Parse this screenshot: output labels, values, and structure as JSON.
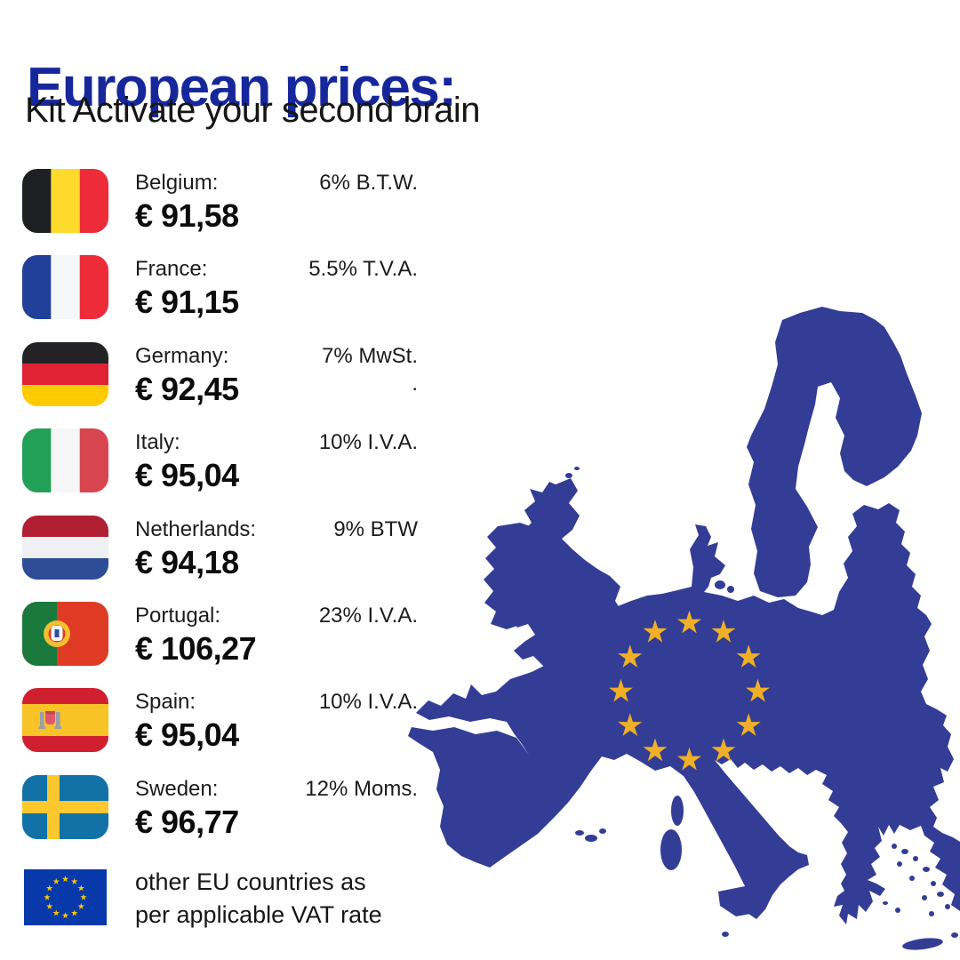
{
  "header": {
    "title": "European prices:",
    "subtitle": "Kit Activate your second brain"
  },
  "price_list": {
    "rows": [
      {
        "flag": "be",
        "flag_name": "belgium-flag-icon",
        "country": "Belgium:",
        "price": "€ 91,58",
        "tax": "6% B.T.W."
      },
      {
        "flag": "fr",
        "flag_name": "france-flag-icon",
        "country": "France:",
        "price": "€ 91,15",
        "tax": "5.5% T.V.A."
      },
      {
        "flag": "de",
        "flag_name": "germany-flag-icon",
        "country": "Germany:",
        "price": "€ 92,45",
        "tax": "7% MwSt.",
        "tax_note": "."
      },
      {
        "flag": "it",
        "flag_name": "italy-flag-icon",
        "country": "Italy:",
        "price": "€ 95,04",
        "tax": "10% I.V.A."
      },
      {
        "flag": "nl",
        "flag_name": "netherlands-flag-icon",
        "country": "Netherlands:",
        "price": "€ 94,18",
        "tax": "9% BTW"
      },
      {
        "flag": "pt",
        "flag_name": "portugal-flag-icon",
        "country": "Portugal:",
        "price": "€ 106,27",
        "tax": "23% I.V.A."
      },
      {
        "flag": "es",
        "flag_name": "spain-flag-icon",
        "country": "Spain:",
        "price": "€ 95,04",
        "tax": "10% I.V.A."
      },
      {
        "flag": "se",
        "flag_name": "sweden-flag-icon",
        "country": "Sweden:",
        "price": "€ 96,77",
        "tax": "12% Moms."
      }
    ],
    "row_top_start": 190,
    "row_spacing": 97.4,
    "footer": {
      "flag": "eu",
      "flag_name": "eu-flag-icon",
      "line1": "other EU countries as",
      "line2": "per applicable VAT rate"
    }
  },
  "map": {
    "star_count": 12,
    "colors": {
      "land": "#333d96",
      "star": "#efaf26"
    }
  },
  "colors": {
    "title": "#16279c",
    "text": "#1b1b1b",
    "background": "#ffffff"
  }
}
